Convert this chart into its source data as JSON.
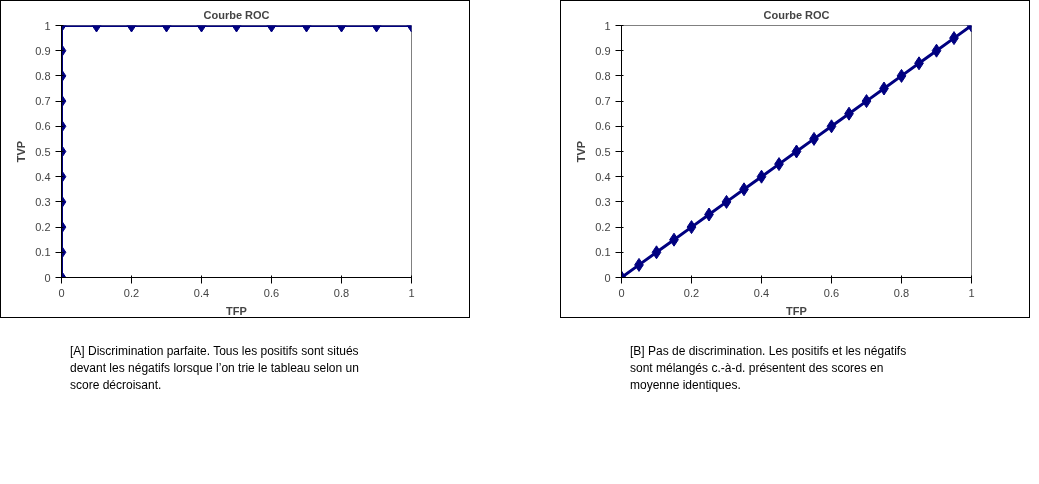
{
  "chart_data": [
    {
      "type": "line",
      "title": "Courbe ROC",
      "xlabel": "TFP",
      "ylabel": "TVP",
      "marker": "diamond",
      "line_style": "solid",
      "grid": false,
      "xlim": [
        0,
        1
      ],
      "ylim": [
        0,
        1
      ],
      "xticks": [
        0,
        0.2,
        0.4,
        0.6,
        0.8,
        1
      ],
      "yticks": [
        0,
        0.1,
        0.2,
        0.3,
        0.4,
        0.5,
        0.6,
        0.7,
        0.8,
        0.9,
        1
      ],
      "series": [
        {
          "color": "#000080",
          "x": [
            0,
            0,
            0,
            0,
            0,
            0,
            0,
            0,
            0,
            0,
            0,
            0.1,
            0.2,
            0.3,
            0.4,
            0.5,
            0.6,
            0.7,
            0.8,
            0.9,
            1
          ],
          "values": [
            0,
            0.1,
            0.2,
            0.3,
            0.4,
            0.5,
            0.6,
            0.7,
            0.8,
            0.9,
            1,
            1,
            1,
            1,
            1,
            1,
            1,
            1,
            1,
            1,
            1
          ]
        }
      ],
      "annotations": [
        "[A] Discrimination parfaite. Tous les positifs sont situés devant les négatifs lorsque l’on trie le tableau selon un score décroisant."
      ]
    },
    {
      "type": "line",
      "title": "Courbe ROC",
      "xlabel": "TFP",
      "ylabel": "TVP",
      "marker": "diamond",
      "line_style": "solid",
      "grid": false,
      "xlim": [
        0,
        1
      ],
      "ylim": [
        0,
        1
      ],
      "xticks": [
        0,
        0.2,
        0.4,
        0.6,
        0.8,
        1
      ],
      "yticks": [
        0,
        0.1,
        0.2,
        0.3,
        0.4,
        0.5,
        0.6,
        0.7,
        0.8,
        0.9,
        1
      ],
      "series": [
        {
          "color": "#000080",
          "x": [
            0,
            0.05,
            0.1,
            0.15,
            0.2,
            0.25,
            0.3,
            0.35,
            0.4,
            0.45,
            0.5,
            0.55,
            0.6,
            0.65,
            0.7,
            0.75,
            0.8,
            0.85,
            0.9,
            0.95,
            1
          ],
          "values": [
            0,
            0.05,
            0.1,
            0.15,
            0.2,
            0.25,
            0.3,
            0.35,
            0.4,
            0.45,
            0.5,
            0.55,
            0.6,
            0.65,
            0.7,
            0.75,
            0.8,
            0.85,
            0.9,
            0.95,
            1
          ]
        }
      ],
      "annotations": [
        "[B] Pas de discrimination. Les positifs et les négatifs sont mélangés c.-à-d. présentent des scores en moyenne  identiques."
      ]
    }
  ]
}
